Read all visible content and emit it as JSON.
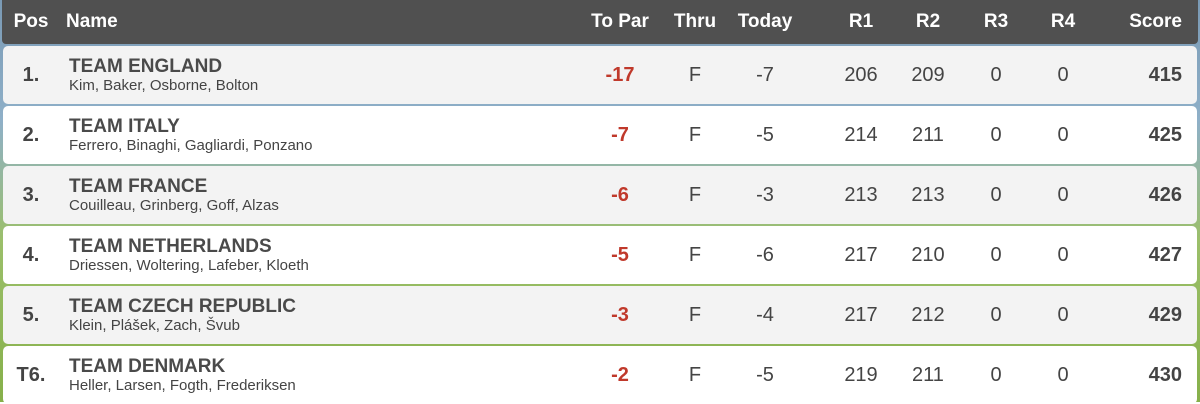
{
  "table": {
    "columns": [
      "Pos",
      "Name",
      "To Par",
      "Thru",
      "Today",
      "R1",
      "R2",
      "R3",
      "R4",
      "Score"
    ],
    "rows": [
      {
        "pos": "1.",
        "team": "TEAM ENGLAND",
        "players": "Kim, Baker, Osborne, Bolton",
        "to_par": -17,
        "thru": "F",
        "today": -7,
        "r1": 206,
        "r2": 209,
        "r3": 0,
        "r4": 0,
        "score": 415
      },
      {
        "pos": "2.",
        "team": "TEAM ITALY",
        "players": "Ferrero, Binaghi, Gagliardi, Ponzano",
        "to_par": -7,
        "thru": "F",
        "today": -5,
        "r1": 214,
        "r2": 211,
        "r3": 0,
        "r4": 0,
        "score": 425
      },
      {
        "pos": "3.",
        "team": "TEAM FRANCE",
        "players": "Couilleau, Grinberg, Goff, Alzas",
        "to_par": -6,
        "thru": "F",
        "today": -3,
        "r1": 213,
        "r2": 213,
        "r3": 0,
        "r4": 0,
        "score": 426
      },
      {
        "pos": "4.",
        "team": "TEAM NETHERLANDS",
        "players": "Driessen, Woltering, Lafeber, Kloeth",
        "to_par": -5,
        "thru": "F",
        "today": -6,
        "r1": 217,
        "r2": 210,
        "r3": 0,
        "r4": 0,
        "score": 427
      },
      {
        "pos": "5.",
        "team": "TEAM CZECH REPUBLIC",
        "players": "Klein, Plášek, Zach, Švub",
        "to_par": -3,
        "thru": "F",
        "today": -4,
        "r1": 217,
        "r2": 212,
        "r3": 0,
        "r4": 0,
        "score": 429
      },
      {
        "pos": "T6.",
        "team": "TEAM DENMARK",
        "players": "Heller, Larsen, Fogth, Frederiksen",
        "to_par": -2,
        "thru": "F",
        "today": -5,
        "r1": 219,
        "r2": 211,
        "r3": 0,
        "r4": 0,
        "score": 430
      }
    ]
  }
}
